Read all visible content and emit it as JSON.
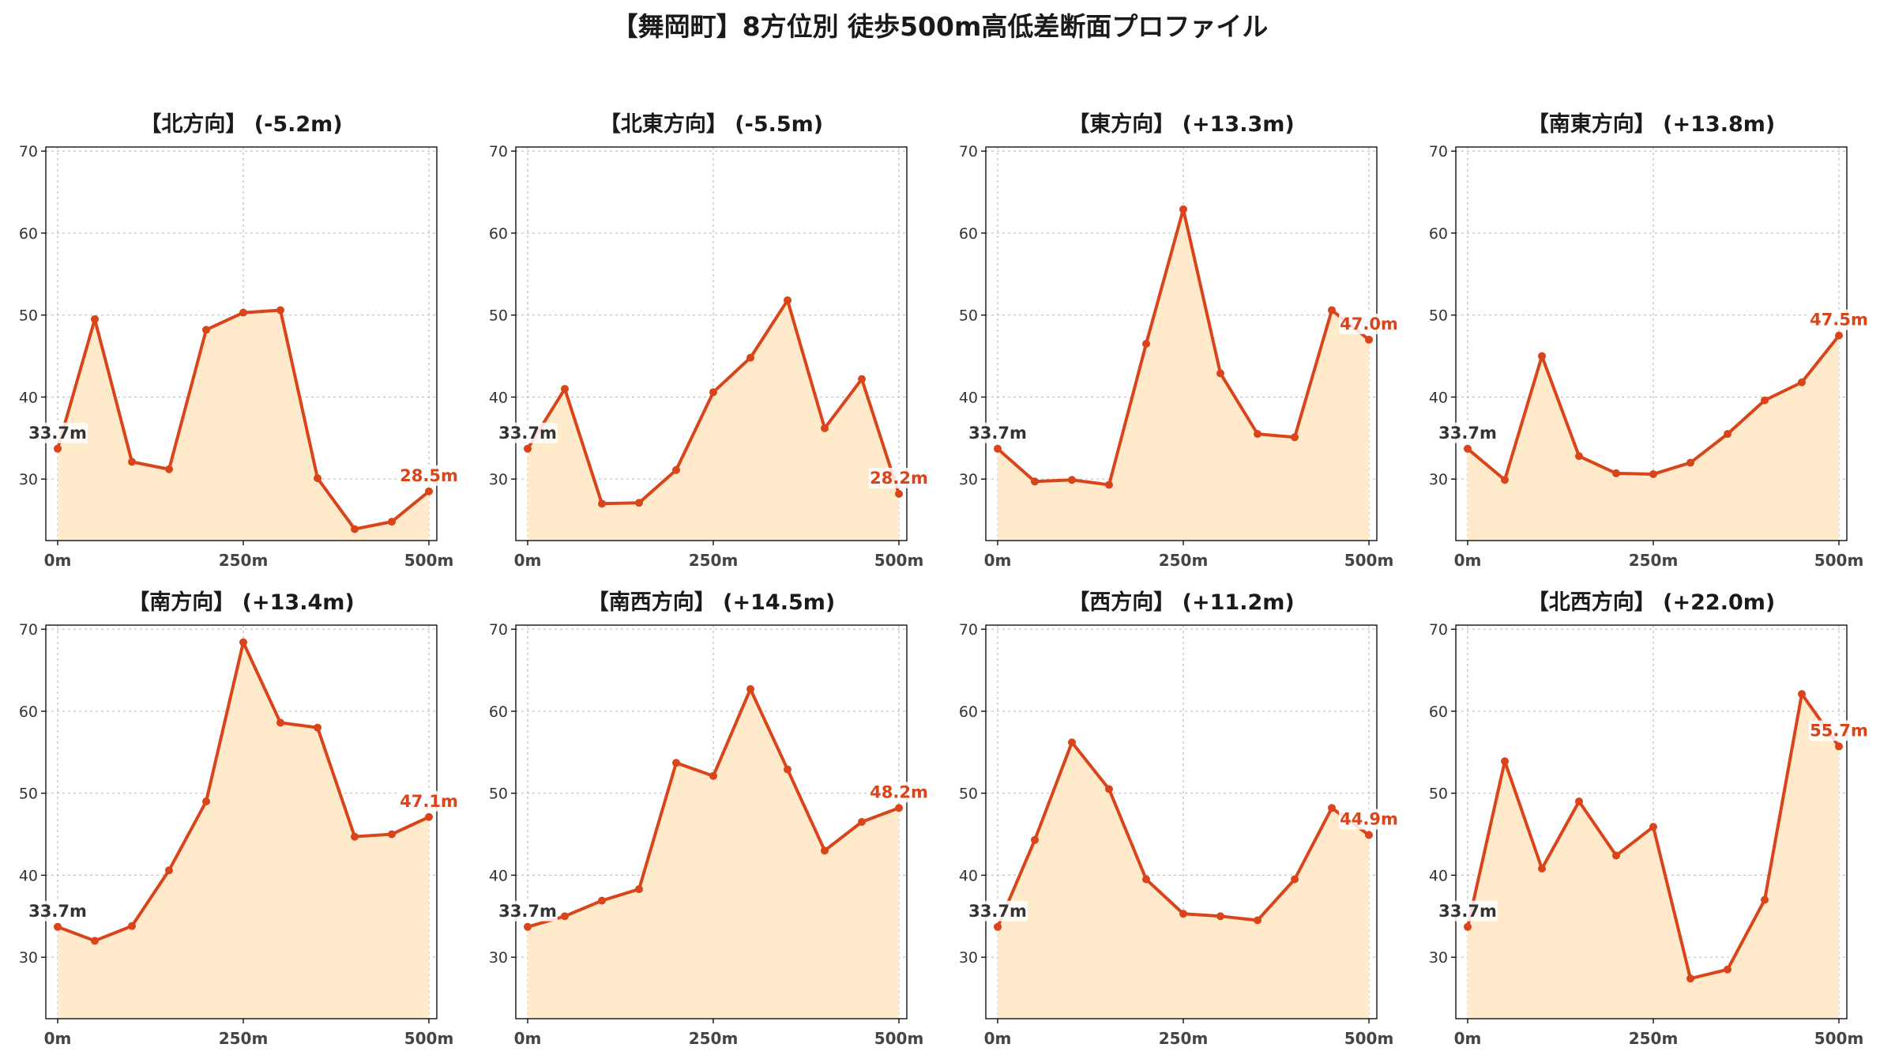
{
  "suptitle": "【舞岡町】8方位別 徒歩500m高低差断面プロファイル",
  "colors": {
    "line": "#d9441a",
    "fill": "#ffebcc",
    "end_label": "#d9441a",
    "start_label": "#333333"
  },
  "chart_data": [
    {
      "type": "area",
      "title": "【北方向】 (-5.2m)",
      "x": [
        0,
        50,
        100,
        150,
        200,
        250,
        300,
        350,
        400,
        450,
        500
      ],
      "y": [
        33.7,
        49.5,
        32.1,
        31.2,
        48.2,
        50.3,
        50.6,
        30.1,
        23.9,
        24.8,
        28.5
      ],
      "start_label": "33.7m",
      "end_label": "28.5m",
      "ylim": [
        22.5,
        70.5
      ],
      "yticks": [
        30,
        40,
        50,
        60,
        70
      ],
      "xticks": [
        0,
        250,
        500
      ],
      "xticklabels": [
        "0m",
        "250m",
        "500m"
      ],
      "grid": true
    },
    {
      "type": "area",
      "title": "【北東方向】 (-5.5m)",
      "x": [
        0,
        50,
        100,
        150,
        200,
        250,
        300,
        350,
        400,
        450,
        500
      ],
      "y": [
        33.7,
        41.0,
        27.0,
        27.1,
        31.1,
        40.6,
        44.8,
        51.8,
        36.2,
        42.2,
        28.2
      ],
      "start_label": "33.7m",
      "end_label": "28.2m",
      "ylim": [
        22.5,
        70.5
      ],
      "yticks": [
        30,
        40,
        50,
        60,
        70
      ],
      "xticks": [
        0,
        250,
        500
      ],
      "xticklabels": [
        "0m",
        "250m",
        "500m"
      ],
      "grid": true
    },
    {
      "type": "area",
      "title": "【東方向】 (+13.3m)",
      "x": [
        0,
        50,
        100,
        150,
        200,
        250,
        300,
        350,
        400,
        450,
        500
      ],
      "y": [
        33.7,
        29.7,
        29.9,
        29.3,
        46.5,
        62.9,
        42.9,
        35.5,
        35.1,
        50.6,
        47.0
      ],
      "start_label": "33.7m",
      "end_label": "47.0m",
      "ylim": [
        22.5,
        70.5
      ],
      "yticks": [
        30,
        40,
        50,
        60,
        70
      ],
      "xticks": [
        0,
        250,
        500
      ],
      "xticklabels": [
        "0m",
        "250m",
        "500m"
      ],
      "grid": true
    },
    {
      "type": "area",
      "title": "【南東方向】 (+13.8m)",
      "x": [
        0,
        50,
        100,
        150,
        200,
        250,
        300,
        350,
        400,
        450,
        500
      ],
      "y": [
        33.7,
        29.9,
        45.0,
        32.8,
        30.7,
        30.6,
        32.0,
        35.5,
        39.6,
        41.8,
        47.5
      ],
      "start_label": "33.7m",
      "end_label": "47.5m",
      "ylim": [
        22.5,
        70.5
      ],
      "yticks": [
        30,
        40,
        50,
        60,
        70
      ],
      "xticks": [
        0,
        250,
        500
      ],
      "xticklabels": [
        "0m",
        "250m",
        "500m"
      ],
      "grid": true
    },
    {
      "type": "area",
      "title": "【南方向】 (+13.4m)",
      "x": [
        0,
        50,
        100,
        150,
        200,
        250,
        300,
        350,
        400,
        450,
        500
      ],
      "y": [
        33.7,
        32.0,
        33.8,
        40.6,
        49.0,
        68.4,
        58.6,
        58.0,
        44.7,
        45.0,
        47.1
      ],
      "start_label": "33.7m",
      "end_label": "47.1m",
      "ylim": [
        22.5,
        70.5
      ],
      "yticks": [
        30,
        40,
        50,
        60,
        70
      ],
      "xticks": [
        0,
        250,
        500
      ],
      "xticklabels": [
        "0m",
        "250m",
        "500m"
      ],
      "grid": true
    },
    {
      "type": "area",
      "title": "【南西方向】 (+14.5m)",
      "x": [
        0,
        50,
        100,
        150,
        200,
        250,
        300,
        350,
        400,
        450,
        500
      ],
      "y": [
        33.7,
        35.0,
        36.9,
        38.3,
        53.7,
        52.1,
        62.7,
        52.9,
        43.0,
        46.5,
        48.2
      ],
      "start_label": "33.7m",
      "end_label": "48.2m",
      "ylim": [
        22.5,
        70.5
      ],
      "yticks": [
        30,
        40,
        50,
        60,
        70
      ],
      "xticks": [
        0,
        250,
        500
      ],
      "xticklabels": [
        "0m",
        "250m",
        "500m"
      ],
      "grid": true
    },
    {
      "type": "area",
      "title": "【西方向】 (+11.2m)",
      "x": [
        0,
        50,
        100,
        150,
        200,
        250,
        300,
        350,
        400,
        450,
        500
      ],
      "y": [
        33.7,
        44.3,
        56.2,
        50.5,
        39.5,
        35.3,
        35.0,
        34.5,
        39.5,
        48.2,
        44.9
      ],
      "start_label": "33.7m",
      "end_label": "44.9m",
      "ylim": [
        22.5,
        70.5
      ],
      "yticks": [
        30,
        40,
        50,
        60,
        70
      ],
      "xticks": [
        0,
        250,
        500
      ],
      "xticklabels": [
        "0m",
        "250m",
        "500m"
      ],
      "grid": true
    },
    {
      "type": "area",
      "title": "【北西方向】 (+22.0m)",
      "x": [
        0,
        50,
        100,
        150,
        200,
        250,
        300,
        350,
        400,
        450,
        500
      ],
      "y": [
        33.7,
        53.9,
        40.8,
        49.0,
        42.4,
        45.9,
        27.4,
        28.5,
        37.0,
        62.1,
        55.7
      ],
      "start_label": "33.7m",
      "end_label": "55.7m",
      "ylim": [
        22.5,
        70.5
      ],
      "yticks": [
        30,
        40,
        50,
        60,
        70
      ],
      "xticks": [
        0,
        250,
        500
      ],
      "xticklabels": [
        "0m",
        "250m",
        "500m"
      ],
      "grid": true
    }
  ]
}
